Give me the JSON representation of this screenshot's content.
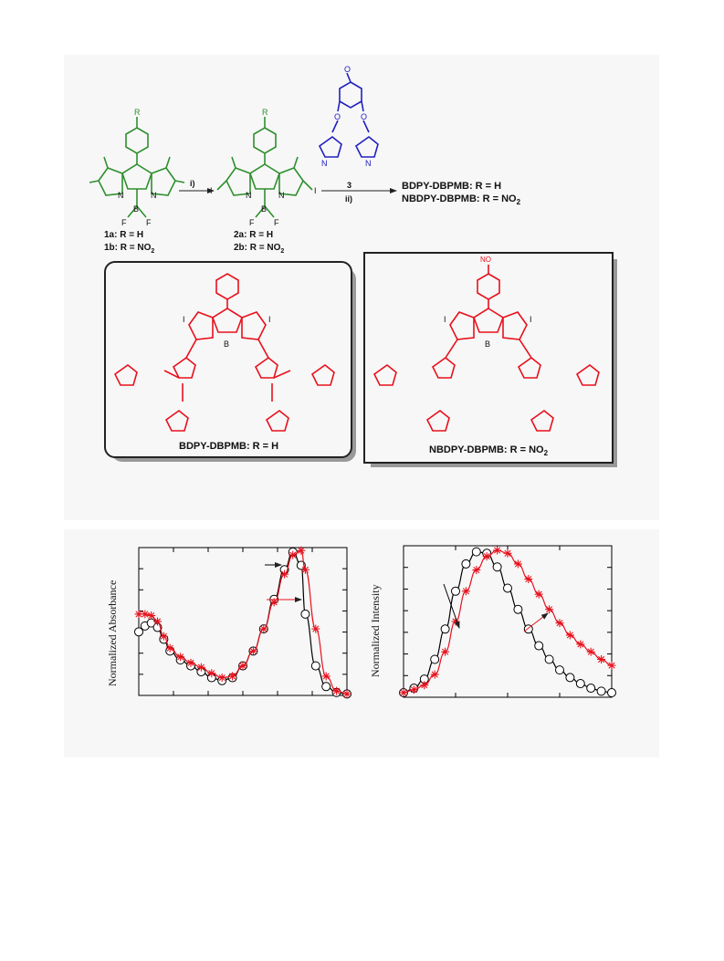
{
  "colors": {
    "green": "#2f8f2f",
    "blue": "#2020c0",
    "red": "#e8101c",
    "black": "#000000"
  },
  "scheme": {
    "compound_1a": "1a",
    "compound_1a_def": ": R = H",
    "compound_1b": "1b",
    "compound_1b_def": ": R = NO",
    "compound_2a": "2a",
    "compound_2a_def": ": R = H",
    "compound_2b": "2b",
    "compound_2b_def": ": R = NO",
    "subscript_2": "2",
    "step_i": "i)",
    "step_ii": "ii)",
    "reagent_3": "3",
    "product_1": "BDPY-DBPMB: R = H",
    "product_2": "NBDPY-DBPMB: R = NO",
    "box1_caption": "BDPY-DBPMB: R = H",
    "box2_caption": "NBDPY-DBPMB: R = NO",
    "atom_R": "R",
    "atom_I": "I",
    "atom_N": "N",
    "atom_B": "B",
    "atom_F": "F",
    "atom_O": "O",
    "group_NO2": "NO"
  },
  "chart_data": [
    {
      "type": "line",
      "title": "",
      "xlabel": "",
      "ylabel": "Normalized Absorbance",
      "ylim": [
        0,
        1
      ],
      "xlim": [
        0,
        1
      ],
      "series": [
        {
          "name": "",
          "color": "#000000",
          "marker": "circle",
          "x": [
            0.0,
            0.03,
            0.06,
            0.09,
            0.12,
            0.15,
            0.2,
            0.25,
            0.3,
            0.35,
            0.4,
            0.45,
            0.5,
            0.55,
            0.6,
            0.65,
            0.7,
            0.74,
            0.78,
            0.8,
            0.85,
            0.9,
            0.95,
            1.0
          ],
          "y": [
            0.43,
            0.47,
            0.49,
            0.46,
            0.38,
            0.3,
            0.24,
            0.2,
            0.16,
            0.12,
            0.1,
            0.12,
            0.2,
            0.3,
            0.45,
            0.65,
            0.85,
            0.97,
            0.88,
            0.55,
            0.2,
            0.06,
            0.02,
            0.01
          ]
        },
        {
          "name": "",
          "color": "#e8101c",
          "marker": "asterisk",
          "x": [
            0.0,
            0.03,
            0.06,
            0.09,
            0.12,
            0.15,
            0.2,
            0.25,
            0.3,
            0.35,
            0.4,
            0.45,
            0.5,
            0.55,
            0.6,
            0.65,
            0.7,
            0.74,
            0.78,
            0.8,
            0.85,
            0.9,
            0.95,
            1.0
          ],
          "y": [
            0.55,
            0.55,
            0.54,
            0.5,
            0.4,
            0.32,
            0.26,
            0.22,
            0.19,
            0.15,
            0.12,
            0.13,
            0.2,
            0.3,
            0.45,
            0.63,
            0.82,
            0.95,
            0.98,
            0.85,
            0.45,
            0.13,
            0.03,
            0.01
          ]
        }
      ]
    },
    {
      "type": "line",
      "title": "",
      "xlabel": "",
      "ylabel": "Normalized Intensity",
      "ylim": [
        0,
        1
      ],
      "xlim": [
        0,
        1
      ],
      "series": [
        {
          "name": "",
          "color": "#000000",
          "marker": "circle",
          "x": [
            0.0,
            0.05,
            0.1,
            0.15,
            0.2,
            0.25,
            0.3,
            0.35,
            0.4,
            0.45,
            0.5,
            0.55,
            0.6,
            0.65,
            0.7,
            0.75,
            0.8,
            0.85,
            0.9,
            0.95,
            1.0
          ],
          "y": [
            0.03,
            0.06,
            0.12,
            0.25,
            0.45,
            0.7,
            0.88,
            0.96,
            0.95,
            0.86,
            0.72,
            0.58,
            0.45,
            0.34,
            0.25,
            0.18,
            0.13,
            0.09,
            0.06,
            0.04,
            0.03
          ]
        },
        {
          "name": "",
          "color": "#e8101c",
          "marker": "asterisk",
          "x": [
            0.0,
            0.05,
            0.1,
            0.15,
            0.2,
            0.25,
            0.3,
            0.35,
            0.4,
            0.45,
            0.5,
            0.55,
            0.6,
            0.65,
            0.7,
            0.75,
            0.8,
            0.85,
            0.9,
            0.95,
            1.0
          ],
          "y": [
            0.03,
            0.05,
            0.08,
            0.15,
            0.3,
            0.5,
            0.7,
            0.84,
            0.93,
            0.97,
            0.95,
            0.88,
            0.78,
            0.68,
            0.58,
            0.49,
            0.41,
            0.35,
            0.3,
            0.25,
            0.21
          ]
        }
      ]
    }
  ]
}
